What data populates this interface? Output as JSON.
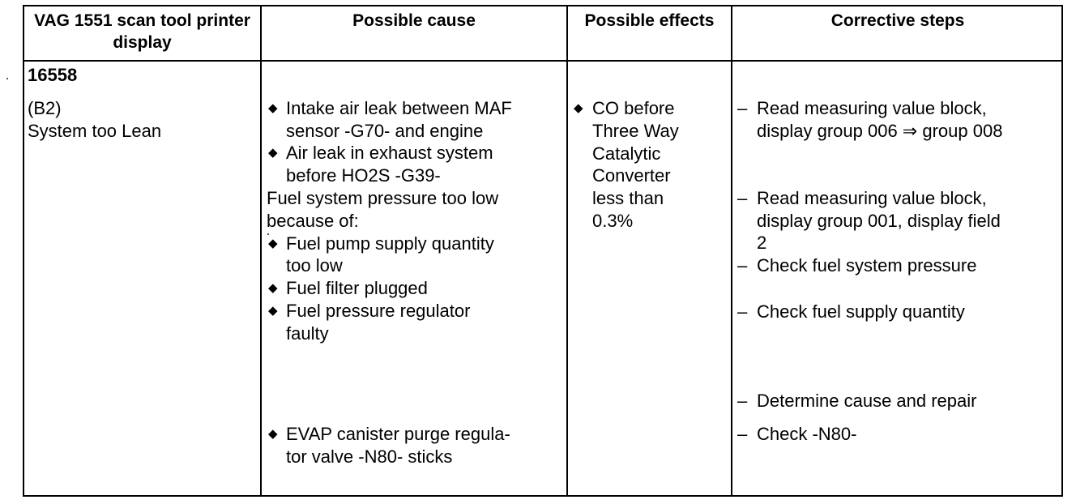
{
  "headers": {
    "col1": "VAG 1551 scan tool printer display",
    "col2": "Possible cause",
    "col3": "Possible effects",
    "col4": "Corrective steps"
  },
  "display": {
    "code": "16558",
    "bank": "(B2)",
    "message": "System too Lean"
  },
  "causes": {
    "c1_l1": "Intake air leak between MAF",
    "c1_l2": "sensor -G70- and engine",
    "c2_l1": "Air leak in exhaust system",
    "c2_l2": "before HO2S -G39-",
    "c3_l1": "Fuel system pressure too low",
    "c3_l2": "because of:",
    "c4_l1": "Fuel pump supply quantity",
    "c4_l2": "too low",
    "c5": "Fuel filter plugged",
    "c6_l1": "Fuel pressure regulator",
    "c6_l2": "faulty",
    "c7_l1": "EVAP canister purge regula-",
    "c7_l2": "tor valve -N80- sticks",
    "bullet_glyph": "◆"
  },
  "effects": {
    "l1": "CO before",
    "l2": "Three Way",
    "l3": "Catalytic",
    "l4": "Converter",
    "l5": "less than",
    "l6": "0.3%"
  },
  "steps": {
    "dash_glyph": "–",
    "s1_l1": "Read measuring value block,",
    "s1_l2": "display group 006 ⇒ group 008",
    "s2_l1": "Read measuring value block,",
    "s2_l2": "display group 001, display field",
    "s2_l3": "2",
    "s3": "Check fuel system pressure",
    "s4": "Check fuel supply quantity",
    "s5": "Determine cause and repair",
    "s6": "Check -N80-"
  }
}
